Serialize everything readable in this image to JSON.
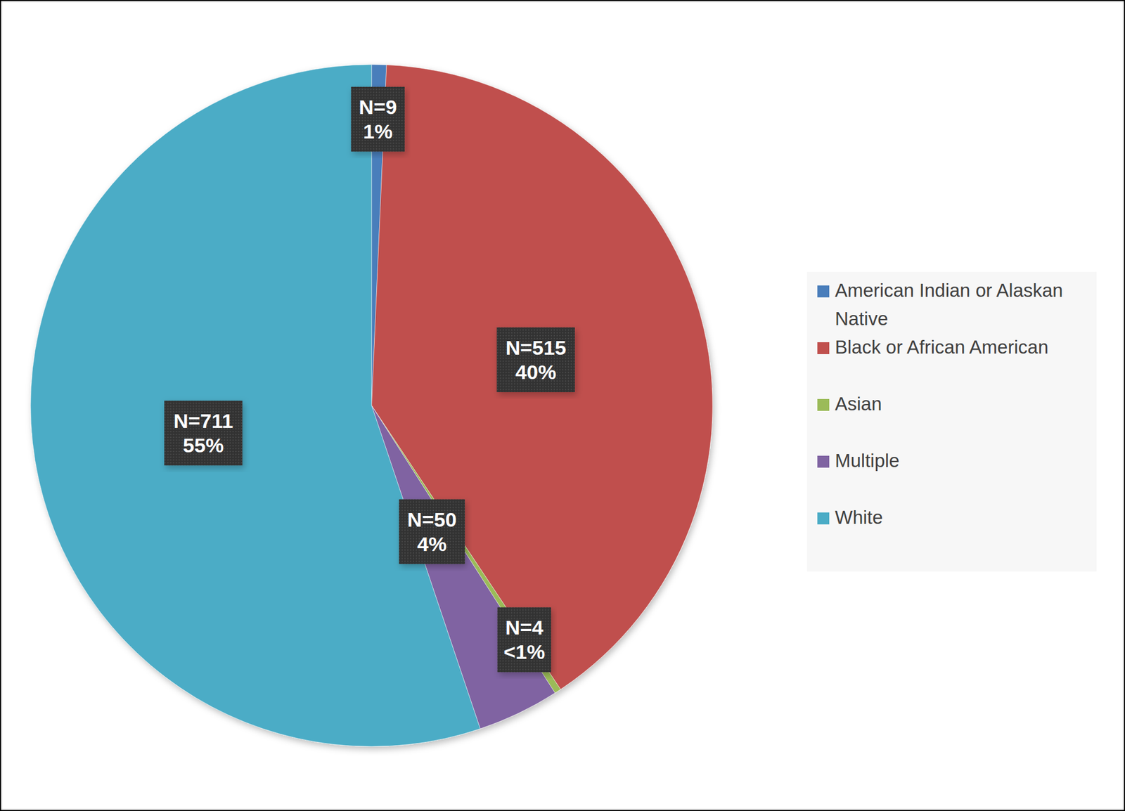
{
  "chart_data": {
    "type": "pie",
    "categories": [
      "American Indian or Alaskan Native",
      "Black or African American",
      "Asian",
      "Multiple",
      "White"
    ],
    "values": [
      9,
      515,
      4,
      50,
      711
    ],
    "value_labels": [
      "N=9",
      "N=515",
      "N=4",
      "N=50",
      "N=711"
    ],
    "percents": [
      1,
      40,
      0.3,
      4,
      55
    ],
    "percent_labels": [
      "1%",
      "40%",
      "<1%",
      "4%",
      "55%"
    ],
    "colors": [
      "#4a7ebb",
      "#c0504d",
      "#9bbb59",
      "#8064a2",
      "#4bacc6"
    ],
    "data_labels": true,
    "legend": "right"
  }
}
